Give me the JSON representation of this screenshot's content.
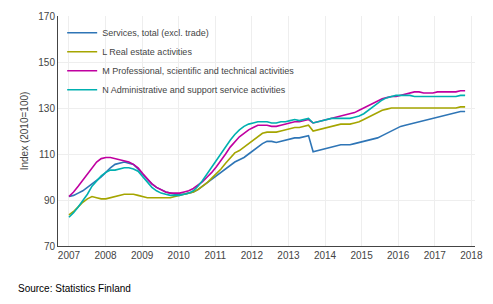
{
  "chart_data": {
    "type": "line",
    "ylabel": "Index (2010=100)",
    "source": "Source: Statistics Finland",
    "x": [
      2007.0,
      2007.1259,
      2007.2519,
      2007.3778,
      2007.5037,
      2007.6297,
      2007.7556,
      2007.8815,
      2008.0074,
      2008.1334,
      2008.2593,
      2008.3852,
      2008.5112,
      2008.6371,
      2008.763,
      2008.889,
      2009.0149,
      2009.1408,
      2009.2667,
      2009.3927,
      2009.5186,
      2009.6445,
      2009.7705,
      2009.8964,
      2010.0223,
      2010.1483,
      2010.2742,
      2010.4001,
      2010.526,
      2010.652,
      2010.7779,
      2010.9038,
      2011.0298,
      2011.1557,
      2011.2816,
      2011.4076,
      2011.5335,
      2011.6594,
      2011.7853,
      2011.9113,
      2012.0372,
      2012.1631,
      2012.2891,
      2012.415,
      2012.5409,
      2012.6669,
      2012.7928,
      2012.9187,
      2013.0447,
      2013.1706,
      2013.2965,
      2013.4224,
      2013.5484,
      2013.6743,
      2013.8002,
      2013.9262,
      2014.0521,
      2014.178,
      2014.304,
      2014.4299,
      2014.5558,
      2014.6817,
      2014.8077,
      2014.9336,
      2015.0595,
      2015.1855,
      2015.3114,
      2015.4373,
      2015.5633,
      2015.6892,
      2015.8151,
      2015.941,
      2016.067,
      2016.1929,
      2016.3188,
      2016.4448,
      2016.5707,
      2016.6966,
      2016.8226,
      2016.9485,
      2017.0744,
      2017.2003,
      2017.3263,
      2017.4522,
      2017.5781,
      2017.7041,
      2017.83
    ],
    "xlim": [
      2006.7,
      2018.1
    ],
    "xticks": [
      2007,
      2008,
      2009,
      2010,
      2011,
      2012,
      2013,
      2014,
      2015,
      2016,
      2017,
      2018
    ],
    "ylim": [
      70,
      170
    ],
    "yticks": [
      70,
      90,
      110,
      130,
      150,
      170
    ],
    "grid": true,
    "legend": "upper left",
    "series": [
      {
        "name": "Services, total (excl. trade)",
        "color": "#2e75b6",
        "values": [
          91.5,
          92.0,
          93.0,
          94.0,
          95.5,
          97.0,
          98.5,
          100.0,
          102.0,
          104.0,
          105.5,
          106.0,
          106.5,
          106.0,
          105.5,
          103.5,
          101.0,
          99.0,
          97.0,
          95.5,
          94.5,
          93.5,
          93.0,
          92.5,
          92.5,
          92.5,
          93.0,
          93.5,
          94.5,
          96.0,
          97.5,
          99.0,
          100.5,
          102.0,
          103.5,
          105.0,
          106.5,
          107.5,
          108.5,
          110.0,
          111.5,
          113.0,
          114.5,
          115.5,
          115.5,
          115.0,
          115.5,
          116.0,
          116.5,
          117.0,
          117.0,
          117.5,
          118.0,
          111.0,
          111.5,
          112.0,
          112.5,
          113.0,
          113.5,
          114.0,
          114.0,
          114.0,
          114.5,
          115.0,
          115.5,
          116.0,
          116.5,
          117.0,
          118.0,
          119.0,
          120.0,
          121.0,
          122.0,
          122.5,
          123.0,
          123.5,
          124.0,
          124.5,
          125.0,
          125.5,
          126.0,
          126.5,
          127.0,
          127.5,
          128.0,
          128.5,
          128.5
        ]
      },
      {
        "name": "L Real estate activities",
        "color": "#a5a500",
        "values": [
          83.5,
          85.0,
          87.0,
          89.0,
          90.5,
          91.5,
          91.0,
          90.5,
          90.5,
          91.0,
          91.5,
          92.0,
          92.5,
          92.5,
          92.5,
          92.0,
          91.5,
          91.0,
          91.0,
          91.0,
          91.0,
          91.0,
          91.0,
          91.5,
          92.0,
          92.5,
          93.0,
          93.5,
          94.5,
          96.0,
          97.5,
          99.5,
          101.5,
          103.5,
          106.0,
          108.5,
          110.5,
          111.5,
          113.0,
          114.5,
          116.0,
          117.5,
          119.0,
          119.5,
          119.5,
          119.5,
          120.0,
          120.5,
          121.0,
          121.5,
          121.5,
          122.0,
          122.5,
          120.0,
          120.5,
          121.0,
          121.5,
          122.0,
          122.5,
          123.0,
          123.0,
          123.0,
          123.5,
          124.0,
          125.0,
          126.0,
          127.0,
          128.0,
          129.0,
          129.5,
          130.0,
          130.0,
          130.0,
          130.0,
          130.0,
          130.0,
          130.0,
          130.0,
          130.0,
          130.0,
          130.0,
          130.0,
          130.0,
          130.0,
          130.0,
          130.5,
          130.5
        ]
      },
      {
        "name": "M Professional, scientific and technical activities",
        "color": "#c000a0",
        "values": [
          91.5,
          93.5,
          96.0,
          98.5,
          101.0,
          104.0,
          106.5,
          108.0,
          108.5,
          108.5,
          108.0,
          107.5,
          107.0,
          106.5,
          105.5,
          104.0,
          101.5,
          99.0,
          97.0,
          95.5,
          94.5,
          93.5,
          93.0,
          93.0,
          93.0,
          93.5,
          94.0,
          95.0,
          96.5,
          98.0,
          100.0,
          102.0,
          104.5,
          107.0,
          110.0,
          113.0,
          115.5,
          117.5,
          119.0,
          120.5,
          121.5,
          122.5,
          122.5,
          122.5,
          122.0,
          122.0,
          122.5,
          123.0,
          123.5,
          124.0,
          124.0,
          124.5,
          125.0,
          123.5,
          124.0,
          124.5,
          125.0,
          125.5,
          126.0,
          126.5,
          127.0,
          127.5,
          128.0,
          129.0,
          130.0,
          131.0,
          132.0,
          133.0,
          134.0,
          134.5,
          135.0,
          135.0,
          135.5,
          136.0,
          136.5,
          137.0,
          137.0,
          136.5,
          136.5,
          136.5,
          137.0,
          137.0,
          137.0,
          137.0,
          137.0,
          137.5,
          137.5
        ]
      },
      {
        "name": "N Administrative and support service activities",
        "color": "#00b0b0",
        "values": [
          82.5,
          84.5,
          87.0,
          89.5,
          92.5,
          96.0,
          98.5,
          100.5,
          102.0,
          103.0,
          103.0,
          103.5,
          104.0,
          104.0,
          103.5,
          102.5,
          100.0,
          97.5,
          95.5,
          94.0,
          93.0,
          92.5,
          92.0,
          92.0,
          92.0,
          92.5,
          93.0,
          94.0,
          96.0,
          98.5,
          101.5,
          104.5,
          107.5,
          110.0,
          113.0,
          116.0,
          118.5,
          120.5,
          122.0,
          123.0,
          123.5,
          124.0,
          124.0,
          124.0,
          123.5,
          123.5,
          124.0,
          124.0,
          124.5,
          125.0,
          124.5,
          125.0,
          125.5,
          123.5,
          124.0,
          124.5,
          125.0,
          125.5,
          125.5,
          125.5,
          125.5,
          125.5,
          126.0,
          126.5,
          127.5,
          129.0,
          130.5,
          132.0,
          133.5,
          134.5,
          135.0,
          135.5,
          135.5,
          135.5,
          135.5,
          135.0,
          135.0,
          135.0,
          135.0,
          135.0,
          135.0,
          135.0,
          135.0,
          135.0,
          135.0,
          135.5,
          135.5
        ]
      }
    ]
  }
}
